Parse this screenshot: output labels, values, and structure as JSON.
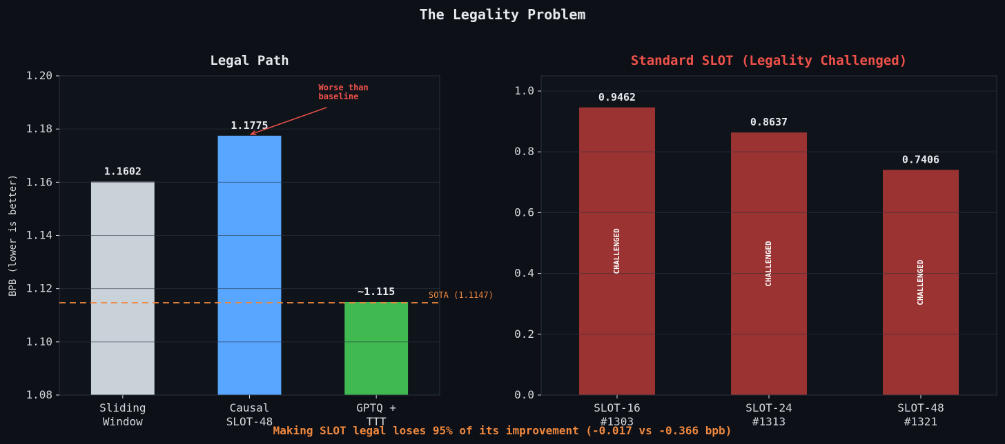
{
  "figure": {
    "title": "The Legality Problem",
    "footer": "Making SLOT legal loses 95% of its improvement (-0.017 vs -0.366 bpb)"
  },
  "colors": {
    "background": "#0d1017",
    "panel": "#0f131a",
    "text": "#e6e9ee",
    "tick": "#d6d9de",
    "grid": "#1c222c",
    "spine": "#2a313c",
    "accent_red": "#f0524a",
    "accent_orange": "#f0883e",
    "challenged_bar": "#9b3333"
  },
  "chart_data": [
    {
      "type": "bar",
      "title": "Legal Path",
      "ylabel": "BPB (lower is better)",
      "xlabel": "",
      "categories": [
        "Sliding\nWindow",
        "Causal\nSLOT-48",
        "GPTQ +\nTTT"
      ],
      "values": [
        1.1602,
        1.1775,
        1.115
      ],
      "value_labels": [
        "1.1602",
        "1.1775",
        "~1.115"
      ],
      "bar_colors": [
        "#c9d1d9",
        "#58a6ff",
        "#3fb950"
      ],
      "ylim": [
        1.08,
        1.2
      ],
      "yticks": [
        1.08,
        1.1,
        1.12,
        1.14,
        1.16,
        1.18,
        1.2
      ],
      "ytick_labels": [
        "1.08",
        "1.10",
        "1.12",
        "1.14",
        "1.16",
        "1.18",
        "1.20"
      ],
      "grid": true,
      "reference_line": {
        "value": 1.1147,
        "label": "SOTA (1.1147)",
        "color": "#f0883e",
        "style": "dashed"
      },
      "annotation": {
        "text": [
          "Worse than",
          "baseline"
        ],
        "points_to_category": 1,
        "color": "#f0524a"
      }
    },
    {
      "type": "bar",
      "title": "Standard SLOT (Legality Challenged)",
      "ylabel": "",
      "xlabel": "",
      "categories": [
        "SLOT-16\n#1303",
        "SLOT-24\n#1313",
        "SLOT-48\n#1321"
      ],
      "values": [
        0.9462,
        0.8637,
        0.7406
      ],
      "value_labels": [
        "0.9462",
        "0.8637",
        "0.7406"
      ],
      "bar_colors": [
        "#9b3333",
        "#9b3333",
        "#9b3333"
      ],
      "bar_text": "CHALLENGED",
      "ylim": [
        0,
        1.05
      ],
      "yticks": [
        0,
        0.2,
        0.4,
        0.6,
        0.8,
        1.0
      ],
      "ytick_labels": [
        "0.0",
        "0.2",
        "0.4",
        "0.6",
        "0.8",
        "1.0"
      ],
      "grid": true
    }
  ]
}
